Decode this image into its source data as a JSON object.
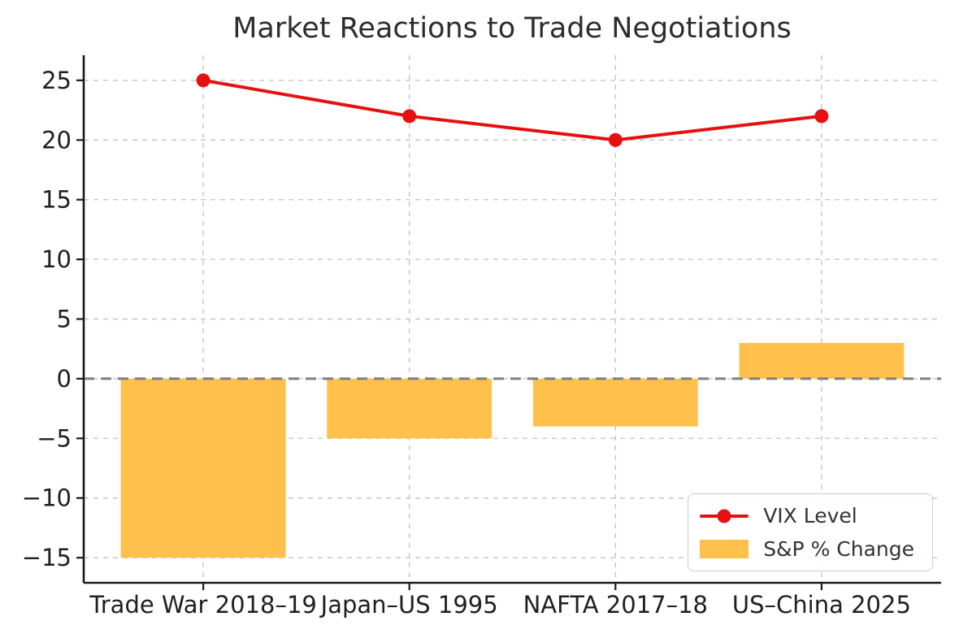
{
  "chart_data": {
    "type": "combo",
    "title": "Market Reactions to Trade Negotiations",
    "categories": [
      "Trade War 2018–19",
      "Japan–US 1995",
      "NAFTA 2017–18",
      "US–China 2025"
    ],
    "series": [
      {
        "name": "VIX Level",
        "type": "line",
        "color": "#e61010",
        "values": [
          25,
          22,
          20,
          22
        ]
      },
      {
        "name": "S&P % Change",
        "type": "bar",
        "color": "#ffc04c",
        "values": [
          -15,
          -5,
          -4,
          3
        ]
      }
    ],
    "yticks": [
      25,
      20,
      15,
      10,
      5,
      0,
      -5,
      -10,
      -15
    ],
    "ylim": [
      -17.1,
      27.1
    ],
    "xlim": [
      -0.58,
      3.58
    ],
    "bar_width": 0.8,
    "grid": true,
    "zero_line": true,
    "legend_position": "lower right"
  }
}
